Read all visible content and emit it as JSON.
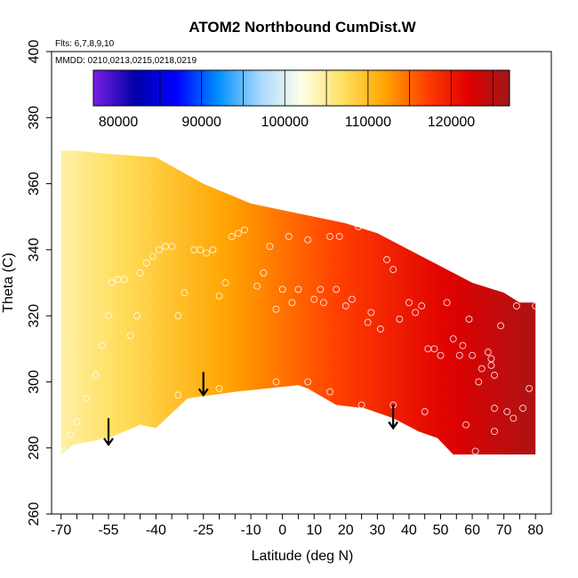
{
  "chart_data": {
    "type": "heatmap",
    "title": "ATOM2 Northbound CumDist.W",
    "flights_label": "Flts: 6,7,8,9,10",
    "dates_label": "MMDD: 0210,0213,0215,0218,0219",
    "xlabel": "Latitude (deg N)",
    "ylabel": "Theta (C)",
    "xlim": [
      -73,
      85
    ],
    "ylim": [
      260,
      400
    ],
    "x_ticks": [
      -70,
      -55,
      -40,
      -25,
      -10,
      5,
      20,
      35,
      50,
      65,
      80
    ],
    "x_tick_labels": [
      "-70",
      "-55",
      "-40",
      "-25",
      "-10",
      "0",
      "10",
      "20",
      "30",
      "40",
      "50",
      "60",
      "70",
      "80"
    ],
    "x_label_values": [
      -70,
      -55,
      -40,
      -25,
      -10,
      0,
      10,
      20,
      30,
      40,
      50,
      60,
      70,
      80
    ],
    "x_minor_ticks": [
      -65,
      -60,
      -50,
      -45,
      -35,
      -30,
      -20,
      -15,
      -5,
      0,
      10,
      15,
      25,
      30,
      40,
      45,
      55,
      60,
      70,
      75
    ],
    "y_ticks": [
      260,
      280,
      300,
      320,
      340,
      360,
      380,
      400
    ],
    "y_tick_labels": [
      "260",
      "280",
      "300",
      "320",
      "340",
      "360",
      "380",
      "400"
    ],
    "colorbar": {
      "range": [
        77000,
        127000
      ],
      "tick_values": [
        80000,
        90000,
        100000,
        110000,
        120000
      ],
      "tick_labels": [
        "80000",
        "90000",
        "100000",
        "110000",
        "120000"
      ],
      "box_lines": [
        85000,
        90000,
        95000,
        100000,
        105000,
        110000,
        115000,
        120000,
        125000
      ],
      "colors": [
        "#7a1fe6",
        "#0000a8",
        "#0000ff",
        "#0090ff",
        "#a8d8ff",
        "#ffffe8",
        "#ffe060",
        "#ffa500",
        "#ff4000",
        "#e00000",
        "#a01818"
      ],
      "color_stops": [
        77000,
        82000,
        87000,
        92000,
        97000,
        102000,
        107000,
        112000,
        117000,
        122000,
        127000
      ]
    },
    "field": {
      "x_range": [
        -70,
        80
      ],
      "value_left": 104500,
      "value_right": 126000,
      "top_boundary": [
        [
          -70,
          370
        ],
        [
          -65,
          370
        ],
        [
          -55,
          369
        ],
        [
          -40,
          368
        ],
        [
          -25,
          360
        ],
        [
          -10,
          354
        ],
        [
          5,
          351
        ],
        [
          20,
          348
        ],
        [
          30,
          345
        ],
        [
          40,
          340
        ],
        [
          50,
          335
        ],
        [
          60,
          330
        ],
        [
          70,
          327
        ],
        [
          75,
          324
        ],
        [
          80,
          324
        ]
      ],
      "bottom_boundary": [
        [
          -70,
          278
        ],
        [
          -66,
          281
        ],
        [
          -55,
          283
        ],
        [
          -45,
          287
        ],
        [
          -40,
          286
        ],
        [
          -30,
          295
        ],
        [
          -15,
          297
        ],
        [
          5,
          299
        ],
        [
          8,
          298
        ],
        [
          17,
          293
        ],
        [
          26,
          292
        ],
        [
          35,
          289
        ],
        [
          43,
          285
        ],
        [
          49,
          283
        ],
        [
          54,
          278
        ],
        [
          80,
          278
        ]
      ]
    },
    "flight_points": [
      [
        -69,
        279
      ],
      [
        -67,
        284
      ],
      [
        -65,
        288
      ],
      [
        -62,
        295
      ],
      [
        -59,
        302
      ],
      [
        -57,
        311
      ],
      [
        -55,
        320
      ],
      [
        -54,
        330
      ],
      [
        -52,
        331
      ],
      [
        -50,
        331
      ],
      [
        -48,
        314
      ],
      [
        -46,
        320
      ],
      [
        -45,
        333
      ],
      [
        -43,
        336
      ],
      [
        -41,
        338
      ],
      [
        -39,
        340
      ],
      [
        -37,
        341
      ],
      [
        -35,
        341
      ],
      [
        -33,
        320
      ],
      [
        -31,
        327
      ],
      [
        -28,
        340
      ],
      [
        -26,
        340
      ],
      [
        -24,
        339
      ],
      [
        -22,
        340
      ],
      [
        -20,
        326
      ],
      [
        -18,
        330
      ],
      [
        -16,
        344
      ],
      [
        -14,
        345
      ],
      [
        -12,
        346
      ],
      [
        -8,
        329
      ],
      [
        -6,
        333
      ],
      [
        -4,
        341
      ],
      [
        -2,
        322
      ],
      [
        0,
        328
      ],
      [
        2,
        344
      ],
      [
        3,
        324
      ],
      [
        5,
        328
      ],
      [
        8,
        343
      ],
      [
        10,
        325
      ],
      [
        12,
        328
      ],
      [
        13,
        324
      ],
      [
        15,
        344
      ],
      [
        17,
        328
      ],
      [
        18,
        344
      ],
      [
        20,
        323
      ],
      [
        22,
        325
      ],
      [
        24,
        347
      ],
      [
        27,
        318
      ],
      [
        28,
        321
      ],
      [
        31,
        316
      ],
      [
        33,
        337
      ],
      [
        35,
        334
      ],
      [
        37,
        319
      ],
      [
        40,
        324
      ],
      [
        42,
        321
      ],
      [
        44,
        323
      ],
      [
        46,
        310
      ],
      [
        48,
        310
      ],
      [
        50,
        308
      ],
      [
        52,
        324
      ],
      [
        54,
        313
      ],
      [
        56,
        308
      ],
      [
        57,
        311
      ],
      [
        59,
        319
      ],
      [
        60,
        308
      ],
      [
        62,
        300
      ],
      [
        63,
        304
      ],
      [
        65,
        309
      ],
      [
        66,
        307
      ],
      [
        66,
        305
      ],
      [
        67,
        302
      ],
      [
        67,
        292
      ],
      [
        69,
        317
      ],
      [
        71,
        291
      ],
      [
        73,
        289
      ],
      [
        74,
        323
      ],
      [
        76,
        292
      ],
      [
        78,
        298
      ],
      [
        80,
        323
      ],
      [
        -57,
        282
      ],
      [
        -45,
        286
      ],
      [
        -33,
        296
      ],
      [
        -20,
        298
      ],
      [
        -2,
        300
      ],
      [
        8,
        300
      ],
      [
        15,
        297
      ],
      [
        25,
        293
      ],
      [
        35,
        293
      ],
      [
        45,
        291
      ],
      [
        58,
        287
      ],
      [
        67,
        285
      ],
      [
        61,
        279
      ]
    ],
    "arrows": [
      {
        "lat": -55,
        "theta_start": 289,
        "theta_end": 281
      },
      {
        "lat": -25,
        "theta_start": 303,
        "theta_end": 296
      },
      {
        "lat": 35,
        "theta_start": 293,
        "theta_end": 286
      }
    ]
  }
}
